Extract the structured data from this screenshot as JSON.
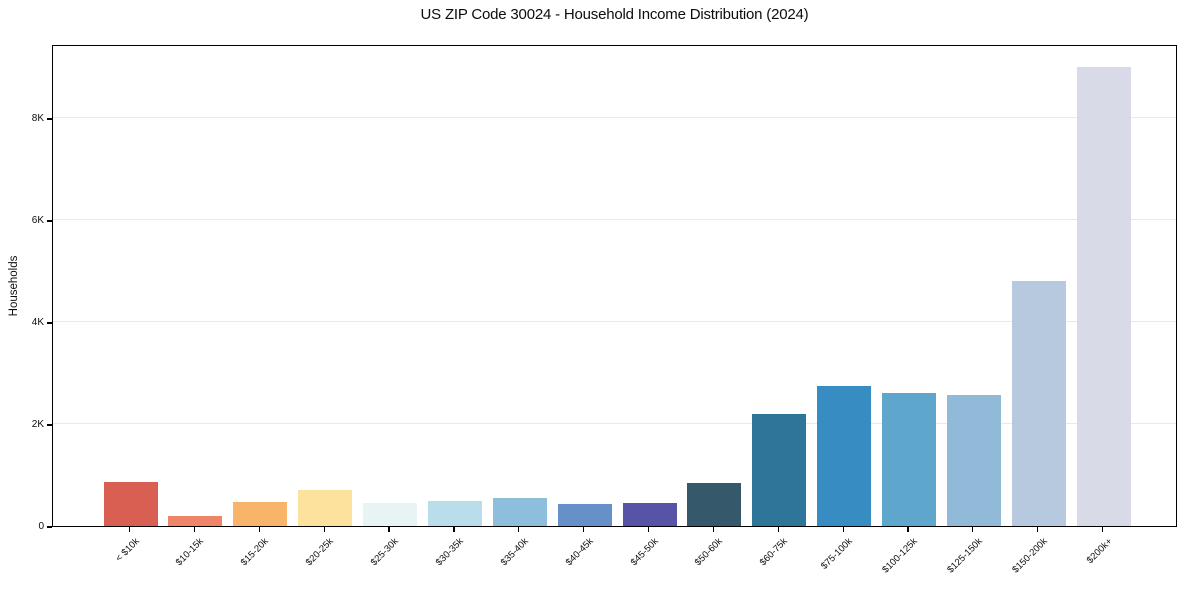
{
  "chart_data": {
    "type": "bar",
    "title": "US ZIP Code 30024 - Household Income Distribution (2024)",
    "xlabel": "",
    "ylabel": "Households",
    "categories": [
      "< $10k",
      "$10-15k",
      "$15-20k",
      "$20-25k",
      "$25-30k",
      "$30-35k",
      "$35-40k",
      "$40-45k",
      "$45-50k",
      "$50-60k",
      "$60-75k",
      "$75-100k",
      "$100-125k",
      "$125-150k",
      "$150-200k",
      "$200k+"
    ],
    "values": [
      870,
      190,
      470,
      710,
      460,
      490,
      550,
      430,
      460,
      840,
      2200,
      2745,
      2610,
      2570,
      4805,
      9000
    ],
    "bar_colors": [
      "#d95f53",
      "#ee8468",
      "#f8b469",
      "#fde29e",
      "#e8f3f3",
      "#b9ddeb",
      "#8dbfdc",
      "#6591c8",
      "#5754a8",
      "#35596b",
      "#2f7499",
      "#378dc1",
      "#5ea6cb",
      "#90bad8",
      "#b6c9df",
      "#d8dae7"
    ],
    "yticks": [
      {
        "value": 0,
        "label": "0"
      },
      {
        "value": 2000,
        "label": "2K"
      },
      {
        "value": 4000,
        "label": "4K"
      },
      {
        "value": 6000,
        "label": "6K"
      },
      {
        "value": 8000,
        "label": "8K"
      }
    ],
    "ylim": [
      0,
      9450
    ],
    "grid": "horizontal-only",
    "legend": "none",
    "background": "#ffffff",
    "spine_color": "#000000",
    "gridline_color": "#e9e9e9"
  }
}
